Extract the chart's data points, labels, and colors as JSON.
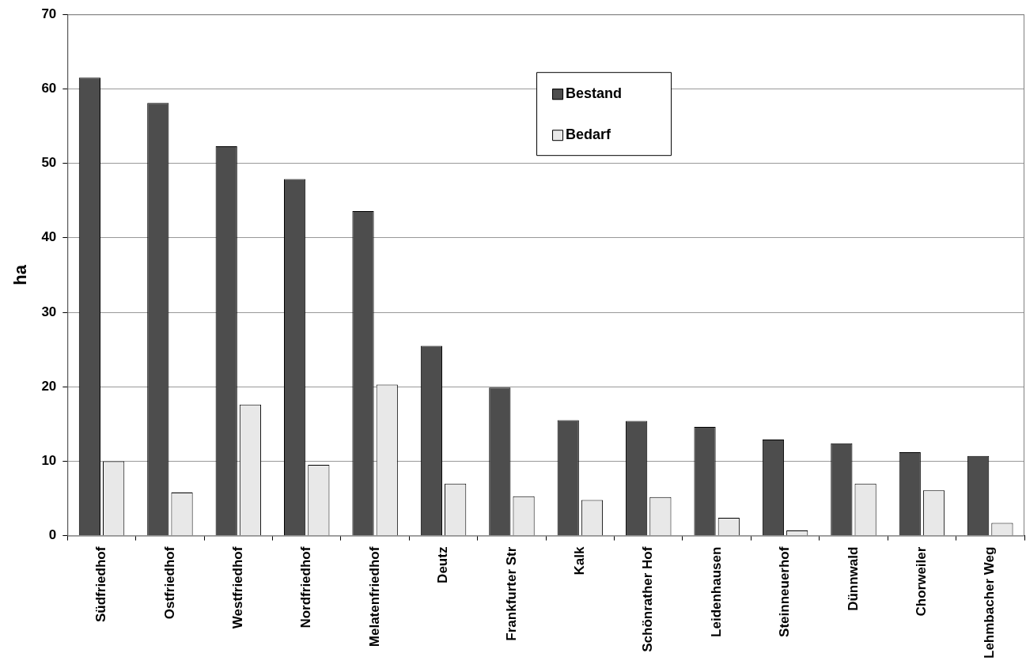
{
  "chart_data": {
    "type": "bar",
    "ylabel": "ha",
    "categories": [
      "Südfriedhof",
      "Ostfriedhof",
      "Westfriedhof",
      "Nordfriedhof",
      "Melatenfriedhof",
      "Deutz",
      "Frankfurter Str",
      "Kalk",
      "Schönrather Hof",
      "Leidenhausen",
      "Steinneuerhof",
      "Dünnwald",
      "Chorweiler",
      "Lehmbacher Weg"
    ],
    "series": [
      {
        "name": "Bestand",
        "color": "#4d4d4d",
        "values": [
          61.5,
          58.1,
          52.3,
          47.9,
          43.6,
          25.5,
          19.9,
          15.5,
          15.4,
          14.6,
          12.9,
          12.4,
          11.2,
          10.7
        ]
      },
      {
        "name": "Bedarf",
        "color": "#e8e8e8",
        "values": [
          10.0,
          5.8,
          17.6,
          9.5,
          20.3,
          7.0,
          5.3,
          4.8,
          5.2,
          2.4,
          0.7,
          7.0,
          6.1,
          1.7
        ]
      }
    ],
    "ylim": [
      0,
      70
    ],
    "yticks": [
      0,
      10,
      20,
      30,
      40,
      50,
      60,
      70
    ],
    "grid": "y",
    "legend": "top right"
  }
}
